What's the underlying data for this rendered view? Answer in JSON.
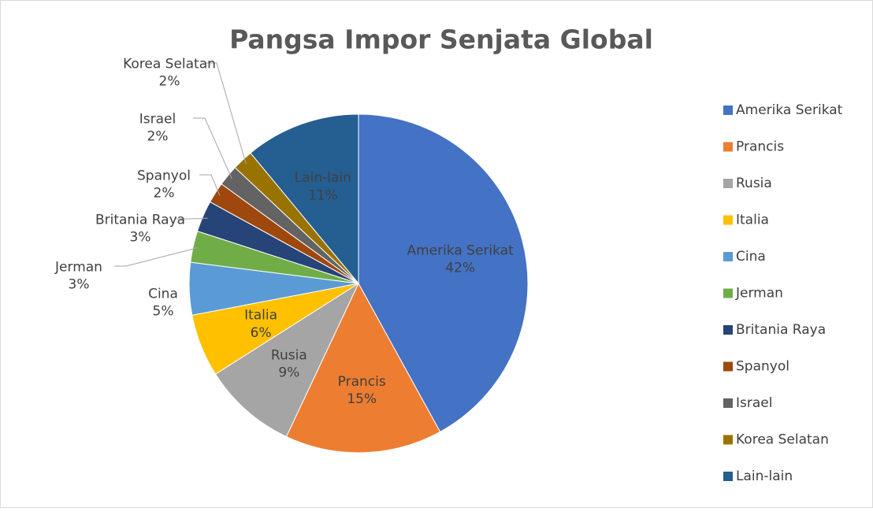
{
  "chart_data": {
    "type": "pie",
    "title": "Pangsa Impor Senjata Global",
    "categories": [
      "Amerika Serikat",
      "Prancis",
      "Rusia",
      "Italia",
      "Cina",
      "Jerman",
      "Britania Raya",
      "Spanyol",
      "Israel",
      "Korea Selatan",
      "Lain-lain"
    ],
    "values": [
      42,
      15,
      9,
      6,
      5,
      3,
      3,
      2,
      2,
      2,
      11
    ],
    "value_labels": [
      "42%",
      "15%",
      "9%",
      "6%",
      "5%",
      "3%",
      "3%",
      "2%",
      "2%",
      "2%",
      "11%"
    ],
    "colors": [
      "#4472c4",
      "#ed7d31",
      "#a5a5a5",
      "#ffc000",
      "#5b9bd5",
      "#70ad47",
      "#264478",
      "#9e480e",
      "#636363",
      "#997300",
      "#255e91"
    ],
    "legend": "right"
  }
}
